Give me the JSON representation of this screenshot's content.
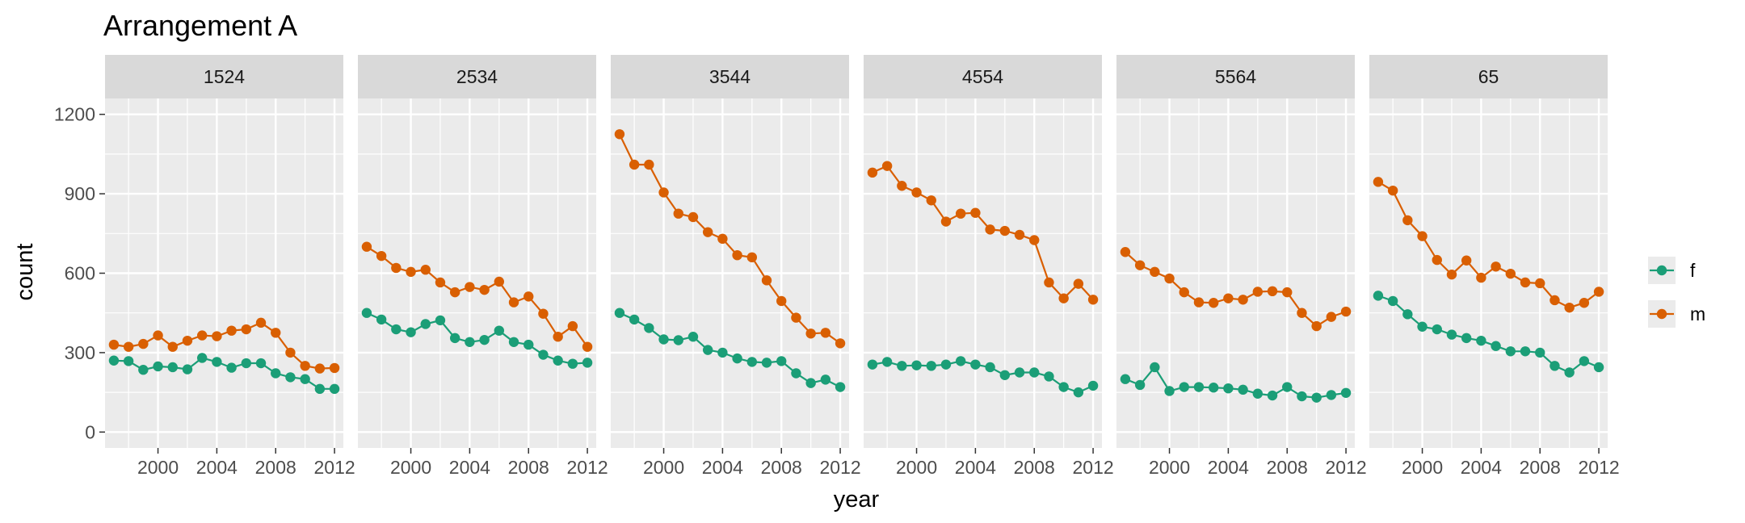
{
  "chart_data": {
    "type": "line",
    "title": "Arrangement A",
    "xlabel": "year",
    "ylabel": "count",
    "xlim": [
      1996.4,
      2012.6
    ],
    "ylim": [
      -60,
      1260
    ],
    "x_ticks": [
      2000,
      2004,
      2008,
      2012
    ],
    "y_ticks": [
      0,
      300,
      600,
      900,
      1200
    ],
    "grid": true,
    "legend_position": "right",
    "colors": {
      "f": "#1b9e77",
      "m": "#d95f02",
      "panel_bg": "#ebebeb",
      "strip_bg": "#d9d9d9"
    },
    "years": [
      1997,
      1998,
      1999,
      2000,
      2001,
      2002,
      2003,
      2004,
      2005,
      2006,
      2007,
      2008,
      2009,
      2010,
      2011,
      2012
    ],
    "facets": [
      {
        "label": "1524",
        "series": [
          {
            "name": "f",
            "values": [
              270,
              268,
              235,
              248,
              245,
              237,
              280,
              265,
              243,
              260,
              260,
              222,
              207,
              200,
              163,
              163
            ]
          },
          {
            "name": "m",
            "values": [
              330,
              322,
              333,
              365,
              322,
              345,
              365,
              362,
              383,
              388,
              413,
              375,
              300,
              250,
              240,
              242
            ]
          }
        ]
      },
      {
        "label": "2534",
        "series": [
          {
            "name": "f",
            "values": [
              450,
              425,
              388,
              377,
              408,
              422,
              355,
              340,
              348,
              383,
              340,
              330,
              292,
              270,
              258,
              262
            ]
          },
          {
            "name": "m",
            "values": [
              700,
              665,
              620,
              605,
              613,
              565,
              528,
              548,
              537,
              568,
              490,
              512,
              447,
              360,
              400,
              322
            ]
          }
        ]
      },
      {
        "label": "3544",
        "series": [
          {
            "name": "f",
            "values": [
              450,
              425,
              393,
              350,
              347,
              360,
              310,
              300,
              278,
              265,
              262,
              268,
              222,
              185,
              198,
              170
            ]
          },
          {
            "name": "m",
            "values": [
              1125,
              1010,
              1010,
              905,
              825,
              812,
              755,
              730,
              668,
              660,
              573,
              495,
              432,
              372,
              375,
              335
            ]
          }
        ]
      },
      {
        "label": "4554",
        "series": [
          {
            "name": "f",
            "values": [
              255,
              265,
              250,
              252,
              250,
              255,
              268,
              255,
              245,
              215,
              225,
              225,
              210,
              170,
              150,
              175
            ]
          },
          {
            "name": "m",
            "values": [
              980,
              1005,
              930,
              905,
              875,
              795,
              825,
              828,
              765,
              760,
              745,
              725,
              565,
              505,
              560,
              500
            ]
          }
        ]
      },
      {
        "label": "5564",
        "series": [
          {
            "name": "f",
            "values": [
              200,
              178,
              245,
              155,
              170,
              170,
              168,
              165,
              160,
              145,
              138,
              170,
              135,
              130,
              140,
              148
            ]
          },
          {
            "name": "m",
            "values": [
              680,
              630,
              605,
              580,
              528,
              490,
              488,
              505,
              500,
              530,
              532,
              528,
              450,
              400,
              435,
              455
            ]
          }
        ]
      },
      {
        "label": "65",
        "series": [
          {
            "name": "f",
            "values": [
              515,
              495,
              445,
              398,
              388,
              368,
              355,
              345,
              325,
              305,
              305,
              300,
              250,
              225,
              268,
              245
            ]
          },
          {
            "name": "m",
            "values": [
              945,
              912,
              800,
              740,
              650,
              595,
              648,
              583,
              625,
              598,
              565,
              562,
              498,
              470,
              488,
              530
            ]
          }
        ]
      }
    ]
  }
}
